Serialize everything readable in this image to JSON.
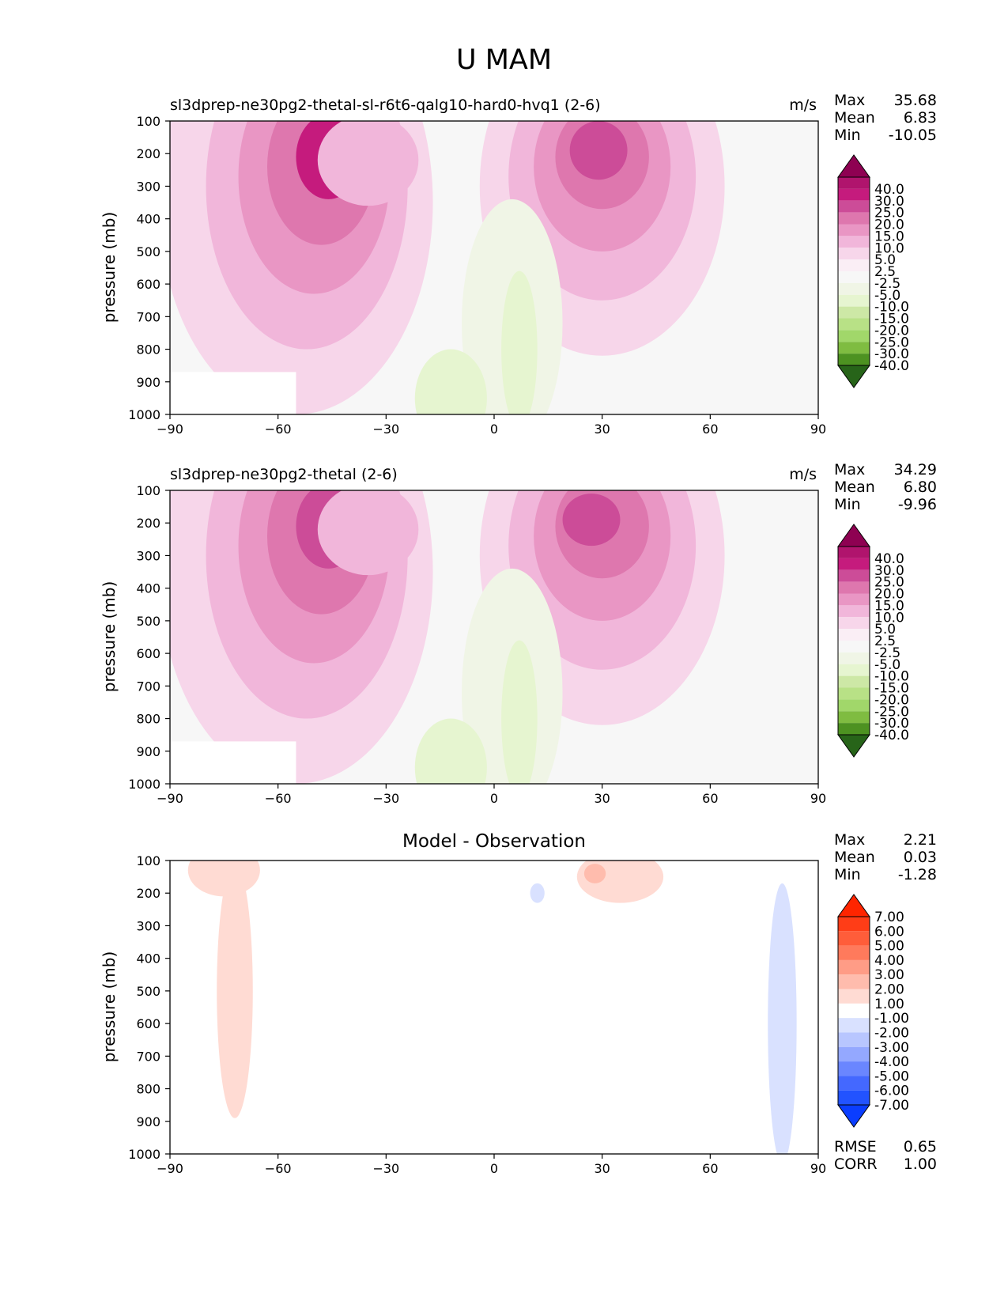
{
  "figure": {
    "title": "U MAM"
  },
  "colorbars": {
    "main": {
      "colors": [
        "#276419",
        "#4d9221",
        "#7fbc41",
        "#a1d76a",
        "#b8e186",
        "#cde8a6",
        "#e6f5d0",
        "#f0f5e6",
        "#f7f7f7",
        "#faeef5",
        "#f7d6ea",
        "#f1b6da",
        "#e996c4",
        "#de77ae",
        "#cc4c98",
        "#c51b7d",
        "#b0146d",
        "#8e0152"
      ],
      "labels": [
        "-40.0",
        "-30.0",
        "-25.0",
        "-20.0",
        "-15.0",
        "-10.0",
        "-5.0",
        "-2.5",
        "2.5",
        "5.0",
        "10.0",
        "15.0",
        "20.0",
        "25.0",
        "30.0",
        "40.0"
      ]
    },
    "diff": {
      "colors": [
        "#0a3dff",
        "#2253ff",
        "#4468ff",
        "#6a86ff",
        "#94a8ff",
        "#b8c6ff",
        "#d9e1ff",
        "#ffffff",
        "#ffdbd3",
        "#ffbcad",
        "#ff9c86",
        "#ff7a5c",
        "#ff5d3a",
        "#ff3d17",
        "#ff2500"
      ],
      "labels": [
        "-7.00",
        "-6.00",
        "-5.00",
        "-4.00",
        "-3.00",
        "-2.00",
        "-1.00",
        "1.00",
        "2.00",
        "3.00",
        "4.00",
        "5.00",
        "6.00",
        "7.00"
      ]
    }
  },
  "chart_data": [
    {
      "type": "heatmap",
      "title": "sl3dprep-ne30pg2-thetal-sl-r6t6-qalg10-hard0-hvq1 (2-6)",
      "units": "m/s",
      "ylabel": "pressure (mb)",
      "xlabel": "",
      "xlim": [
        -90,
        90
      ],
      "ylim": [
        1000,
        100
      ],
      "xticks": [
        -90,
        -60,
        -30,
        0,
        30,
        60,
        90
      ],
      "yticks": [
        100,
        200,
        300,
        400,
        500,
        600,
        700,
        800,
        900,
        1000
      ],
      "stats": {
        "Max": "35.68",
        "Mean": "6.83",
        "Min": "-10.05"
      },
      "colorbar": "main",
      "blobs": [
        {
          "lat": -55,
          "p": 350,
          "rlat": 38,
          "rp": 650,
          "v": 5
        },
        {
          "lat": -52,
          "p": 300,
          "rlat": 28,
          "rp": 500,
          "v": 12
        },
        {
          "lat": -50,
          "p": 270,
          "rlat": 21,
          "rp": 360,
          "v": 18
        },
        {
          "lat": -48,
          "p": 240,
          "rlat": 15,
          "rp": 240,
          "v": 24
        },
        {
          "lat": -46,
          "p": 210,
          "rlat": 9,
          "rp": 130,
          "v": 30
        },
        {
          "lat": -35,
          "p": 220,
          "rlat": 14,
          "rp": 140,
          "v": 14
        },
        {
          "lat": 30,
          "p": 300,
          "rlat": 34,
          "rp": 520,
          "v": 5
        },
        {
          "lat": 30,
          "p": 270,
          "rlat": 26,
          "rp": 380,
          "v": 11
        },
        {
          "lat": 30,
          "p": 240,
          "rlat": 19,
          "rp": 260,
          "v": 17
        },
        {
          "lat": 30,
          "p": 210,
          "rlat": 13,
          "rp": 160,
          "v": 23
        },
        {
          "lat": 29,
          "p": 190,
          "rlat": 8,
          "rp": 90,
          "v": 28
        },
        {
          "lat": 5,
          "p": 720,
          "rlat": 14,
          "rp": 380,
          "v": -3.5
        },
        {
          "lat": -12,
          "p": 950,
          "rlat": 10,
          "rp": 150,
          "v": -6
        },
        {
          "lat": 7,
          "p": 800,
          "rlat": 5,
          "rp": 240,
          "v": -6
        }
      ],
      "masks": [
        {
          "lat0": -90,
          "lat1": -55,
          "p0": 870,
          "p1": 1000
        }
      ]
    },
    {
      "type": "heatmap",
      "title": "sl3dprep-ne30pg2-thetal (2-6)",
      "units": "m/s",
      "ylabel": "pressure (mb)",
      "xlabel": "",
      "xlim": [
        -90,
        90
      ],
      "ylim": [
        1000,
        100
      ],
      "xticks": [
        -90,
        -60,
        -30,
        0,
        30,
        60,
        90
      ],
      "yticks": [
        100,
        200,
        300,
        400,
        500,
        600,
        700,
        800,
        900,
        1000
      ],
      "stats": {
        "Max": "34.29",
        "Mean": "6.80",
        "Min": "-9.96"
      },
      "colorbar": "main",
      "blobs": [
        {
          "lat": -55,
          "p": 350,
          "rlat": 38,
          "rp": 650,
          "v": 5
        },
        {
          "lat": -52,
          "p": 300,
          "rlat": 28,
          "rp": 500,
          "v": 12
        },
        {
          "lat": -50,
          "p": 270,
          "rlat": 21,
          "rp": 360,
          "v": 18
        },
        {
          "lat": -48,
          "p": 240,
          "rlat": 15,
          "rp": 240,
          "v": 24
        },
        {
          "lat": -46,
          "p": 210,
          "rlat": 9,
          "rp": 130,
          "v": 29
        },
        {
          "lat": -35,
          "p": 220,
          "rlat": 14,
          "rp": 140,
          "v": 14
        },
        {
          "lat": 30,
          "p": 300,
          "rlat": 34,
          "rp": 520,
          "v": 5
        },
        {
          "lat": 30,
          "p": 270,
          "rlat": 26,
          "rp": 380,
          "v": 11
        },
        {
          "lat": 30,
          "p": 240,
          "rlat": 19,
          "rp": 260,
          "v": 17
        },
        {
          "lat": 30,
          "p": 210,
          "rlat": 13,
          "rp": 160,
          "v": 23
        },
        {
          "lat": 27,
          "p": 190,
          "rlat": 8,
          "rp": 80,
          "v": 28
        },
        {
          "lat": 5,
          "p": 720,
          "rlat": 14,
          "rp": 380,
          "v": -3.5
        },
        {
          "lat": -12,
          "p": 950,
          "rlat": 10,
          "rp": 150,
          "v": -6
        },
        {
          "lat": 7,
          "p": 800,
          "rlat": 5,
          "rp": 240,
          "v": -6
        }
      ],
      "masks": [
        {
          "lat0": -90,
          "lat1": -55,
          "p0": 870,
          "p1": 1000
        }
      ]
    },
    {
      "type": "heatmap",
      "title": "Model - Observation",
      "units": "",
      "ylabel": "pressure (mb)",
      "xlabel": "",
      "xlim": [
        -90,
        90
      ],
      "ylim": [
        1000,
        100
      ],
      "xticks": [
        -90,
        -60,
        -30,
        0,
        30,
        60,
        90
      ],
      "yticks": [
        100,
        200,
        300,
        400,
        500,
        600,
        700,
        800,
        900,
        1000
      ],
      "stats": {
        "Max": "2.21",
        "Mean": "0.03",
        "Min": "-1.28"
      },
      "metrics": {
        "RMSE": "0.65",
        "CORR": "1.00"
      },
      "colorbar": "diff",
      "blobs": [
        {
          "lat": -72,
          "p": 500,
          "rlat": 5,
          "rp": 390,
          "v": 1.4
        },
        {
          "lat": -75,
          "p": 130,
          "rlat": 10,
          "rp": 80,
          "v": 1.4
        },
        {
          "lat": 35,
          "p": 150,
          "rlat": 12,
          "rp": 80,
          "v": 1.4
        },
        {
          "lat": 28,
          "p": 140,
          "rlat": 3,
          "rp": 30,
          "v": 2.2
        },
        {
          "lat": 12,
          "p": 200,
          "rlat": 2,
          "rp": 30,
          "v": -1.2
        },
        {
          "lat": 80,
          "p": 600,
          "rlat": 4,
          "rp": 430,
          "v": -1.2
        }
      ],
      "masks": []
    }
  ]
}
